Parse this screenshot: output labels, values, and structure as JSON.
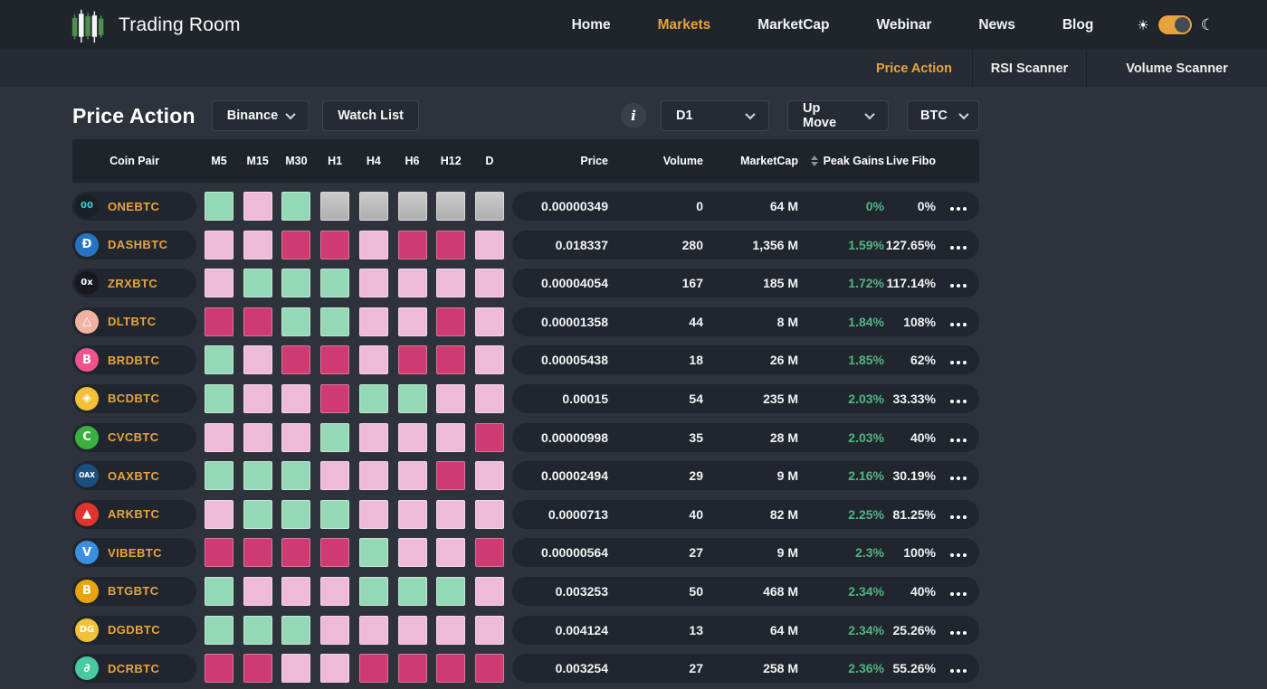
{
  "colors": {
    "accent_orange": "#E7A33E",
    "gain_green": "#4FB583",
    "square_green": "#95D8B6",
    "square_pink": "#EFBAD8",
    "square_magenta": "#CE3B72",
    "square_gray": "#BEBEBE"
  },
  "header": {
    "brand": "Trading Room",
    "nav": [
      {
        "label": "Home",
        "active": false
      },
      {
        "label": "Markets",
        "active": true
      },
      {
        "label": "MarketCap",
        "active": false
      },
      {
        "label": "Webinar",
        "active": false
      },
      {
        "label": "News",
        "active": false
      },
      {
        "label": "Blog",
        "active": false
      }
    ],
    "theme_toggle": {
      "sun_icon": "☀",
      "moon_icon": "☾",
      "state": "on"
    }
  },
  "tabs": [
    {
      "label": "Price Action",
      "active": true
    },
    {
      "label": "RSI Scanner",
      "active": false
    },
    {
      "label": "Volume Scanner",
      "active": false
    }
  ],
  "controls": {
    "title": "Price Action",
    "exchange_select": "Binance",
    "watchlist_button": "Watch List",
    "info_icon": "i",
    "timeframe_select": "D1",
    "direction_select": "Up Move",
    "quote_select": "BTC"
  },
  "table": {
    "header": {
      "coin_pair": "Coin Pair",
      "timeframes": [
        "M5",
        "M15",
        "M30",
        "H1",
        "H4",
        "H6",
        "H12",
        "D"
      ],
      "price": "Price",
      "volume": "Volume",
      "marketcap": "MarketCap",
      "peak_gains": "Peak Gains",
      "live_fibo": "Live Fibo"
    },
    "rows": [
      {
        "pair": "ONEBTC",
        "icon": {
          "glyph": "00",
          "bg": "#1B2026",
          "fg": "#38D3D6"
        },
        "squares": [
          "green",
          "pink",
          "green",
          "gray",
          "gray",
          "gray",
          "gray",
          "gray"
        ],
        "price": "0.00000349",
        "volume": "0",
        "marketcap": "64 M",
        "peak_gains": "0%",
        "live_fibo": "0%"
      },
      {
        "pair": "DASHBTC",
        "icon": {
          "glyph": "Ð",
          "bg": "#2573C4",
          "fg": "#FFFFFF"
        },
        "squares": [
          "pink",
          "pink",
          "magenta",
          "magenta",
          "pink",
          "magenta",
          "magenta",
          "pink"
        ],
        "price": "0.018337",
        "volume": "280",
        "marketcap": "1,356 M",
        "peak_gains": "1.59%",
        "live_fibo": "127.65%"
      },
      {
        "pair": "ZRXBTC",
        "icon": {
          "glyph": "0x",
          "bg": "#17191E",
          "fg": "#FFFFFF"
        },
        "squares": [
          "pink",
          "green",
          "green",
          "green",
          "pink",
          "pink",
          "pink",
          "pink"
        ],
        "price": "0.00004054",
        "volume": "167",
        "marketcap": "185 M",
        "peak_gains": "1.72%",
        "live_fibo": "117.14%"
      },
      {
        "pair": "DLTBTC",
        "icon": {
          "glyph": "△",
          "bg": "#F1B2A2",
          "fg": "#FFFFFF"
        },
        "squares": [
          "magenta",
          "magenta",
          "green",
          "green",
          "pink",
          "pink",
          "magenta",
          "pink"
        ],
        "price": "0.00001358",
        "volume": "44",
        "marketcap": "8 M",
        "peak_gains": "1.84%",
        "live_fibo": "108%"
      },
      {
        "pair": "BRDBTC",
        "icon": {
          "glyph": "B",
          "bg": "#F0538B",
          "fg": "#FFFFFF"
        },
        "squares": [
          "green",
          "pink",
          "magenta",
          "magenta",
          "pink",
          "magenta",
          "magenta",
          "pink"
        ],
        "price": "0.00005438",
        "volume": "18",
        "marketcap": "26 M",
        "peak_gains": "1.85%",
        "live_fibo": "62%"
      },
      {
        "pair": "BCDBTC",
        "icon": {
          "glyph": "◈",
          "bg": "#F3C135",
          "fg": "#FFFFFF"
        },
        "squares": [
          "green",
          "pink",
          "pink",
          "magenta",
          "green",
          "green",
          "pink",
          "pink"
        ],
        "price": "0.00015",
        "volume": "54",
        "marketcap": "235 M",
        "peak_gains": "2.03%",
        "live_fibo": "33.33%"
      },
      {
        "pair": "CVCBTC",
        "icon": {
          "glyph": "C",
          "bg": "#3AB03E",
          "fg": "#FFFFFF"
        },
        "squares": [
          "pink",
          "pink",
          "pink",
          "green",
          "pink",
          "pink",
          "pink",
          "magenta"
        ],
        "price": "0.00000998",
        "volume": "35",
        "marketcap": "28 M",
        "peak_gains": "2.03%",
        "live_fibo": "40%"
      },
      {
        "pair": "OAXBTC",
        "icon": {
          "glyph": "OAX",
          "bg": "#1D4E80",
          "fg": "#FFFFFF"
        },
        "squares": [
          "green",
          "green",
          "green",
          "pink",
          "pink",
          "pink",
          "magenta",
          "pink"
        ],
        "price": "0.00002494",
        "volume": "29",
        "marketcap": "9 M",
        "peak_gains": "2.16%",
        "live_fibo": "30.19%"
      },
      {
        "pair": "ARKBTC",
        "icon": {
          "glyph": "▲",
          "bg": "#E0342C",
          "fg": "#FFFFFF"
        },
        "squares": [
          "pink",
          "green",
          "green",
          "green",
          "pink",
          "pink",
          "pink",
          "pink"
        ],
        "price": "0.0000713",
        "volume": "40",
        "marketcap": "82 M",
        "peak_gains": "2.25%",
        "live_fibo": "81.25%"
      },
      {
        "pair": "VIBEBTC",
        "icon": {
          "glyph": "V",
          "bg": "#3A8FE0",
          "fg": "#FFFFFF"
        },
        "squares": [
          "magenta",
          "magenta",
          "magenta",
          "magenta",
          "green",
          "pink",
          "pink",
          "magenta"
        ],
        "price": "0.00000564",
        "volume": "27",
        "marketcap": "9 M",
        "peak_gains": "2.3%",
        "live_fibo": "100%"
      },
      {
        "pair": "BTGBTC",
        "icon": {
          "glyph": "B",
          "bg": "#E8A50E",
          "fg": "#FFFFFF"
        },
        "squares": [
          "green",
          "pink",
          "pink",
          "pink",
          "green",
          "green",
          "green",
          "pink"
        ],
        "price": "0.003253",
        "volume": "50",
        "marketcap": "468 M",
        "peak_gains": "2.34%",
        "live_fibo": "40%"
      },
      {
        "pair": "DGDBTC",
        "icon": {
          "glyph": "DG",
          "bg": "#F2C13B",
          "fg": "#FFFFFF"
        },
        "squares": [
          "green",
          "green",
          "green",
          "pink",
          "pink",
          "pink",
          "pink",
          "pink"
        ],
        "price": "0.004124",
        "volume": "13",
        "marketcap": "64 M",
        "peak_gains": "2.34%",
        "live_fibo": "25.26%"
      },
      {
        "pair": "DCRBTC",
        "icon": {
          "glyph": "∂",
          "bg": "#47C9A2",
          "fg": "#FFFFFF"
        },
        "squares": [
          "magenta",
          "magenta",
          "pink",
          "pink",
          "magenta",
          "magenta",
          "magenta",
          "magenta"
        ],
        "price": "0.003254",
        "volume": "27",
        "marketcap": "258 M",
        "peak_gains": "2.36%",
        "live_fibo": "55.26%"
      }
    ]
  }
}
